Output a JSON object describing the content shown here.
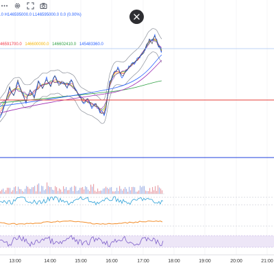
{
  "toolbar": {
    "icons": [
      "more-icon",
      "settings-gear-icon",
      "fullscreen-icon",
      "camera-icon"
    ]
  },
  "quote": {
    "text": ".0 H146595000.0 L146595000.0 0.0 (0.00%)"
  },
  "indicators": [
    {
      "text": "46591700.0",
      "color": "#f23645"
    },
    {
      "text": "146600000.0",
      "color": "#f5b400"
    },
    {
      "text": "146602410.0",
      "color": "#2ea043"
    },
    {
      "text": "145483360.0",
      "color": "#2962ff"
    }
  ],
  "close_button": {
    "icon": "close-icon"
  },
  "time_axis": {
    "labels": [
      "13:00",
      "14:00",
      "15:00",
      "16:00",
      "17:00",
      "18:00",
      "19:00",
      "20:00",
      "21:00"
    ]
  },
  "colors": {
    "red_line": "#e53935",
    "blue_line": "#1e3fdc",
    "volume_bar": "#e8a0a8",
    "rsi_line": "#2a9fd6",
    "orange_line": "#f28c28",
    "purple_line": "#7b5cc8",
    "purple_band": "#ede6f7"
  }
}
